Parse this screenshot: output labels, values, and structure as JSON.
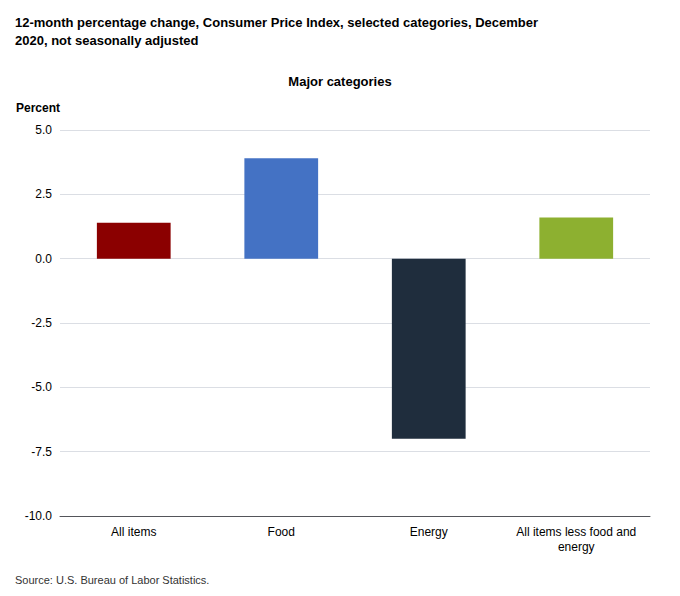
{
  "chart_data": {
    "type": "bar",
    "title": "12-month percentage change, Consumer Price Index, selected categories, December\n2020, not seasonally adjusted",
    "subtitle": "Major categories",
    "ylabel": "Percent",
    "annotations": [
      "Source: U.S. Bureau of Labor Statistics."
    ],
    "categories": [
      "All items",
      "Food",
      "Energy",
      "All items less food and\nenergy"
    ],
    "values": [
      1.4,
      3.9,
      -7.0,
      1.6
    ],
    "colors": [
      "#8B0000",
      "#4472C4",
      "#1F2D3D",
      "#8DB030"
    ],
    "ylim": [
      -10.0,
      5.0
    ],
    "yticks": [
      {
        "value": -10.0,
        "label": "-10.0"
      },
      -7.5,
      {
        "value": -5.0,
        "label": "-5.0"
      },
      -2.5,
      {
        "value": 0.0,
        "label": "0.0"
      },
      2.5,
      {
        "value": 5.0,
        "label": "5.0"
      }
    ],
    "grid": true
  }
}
